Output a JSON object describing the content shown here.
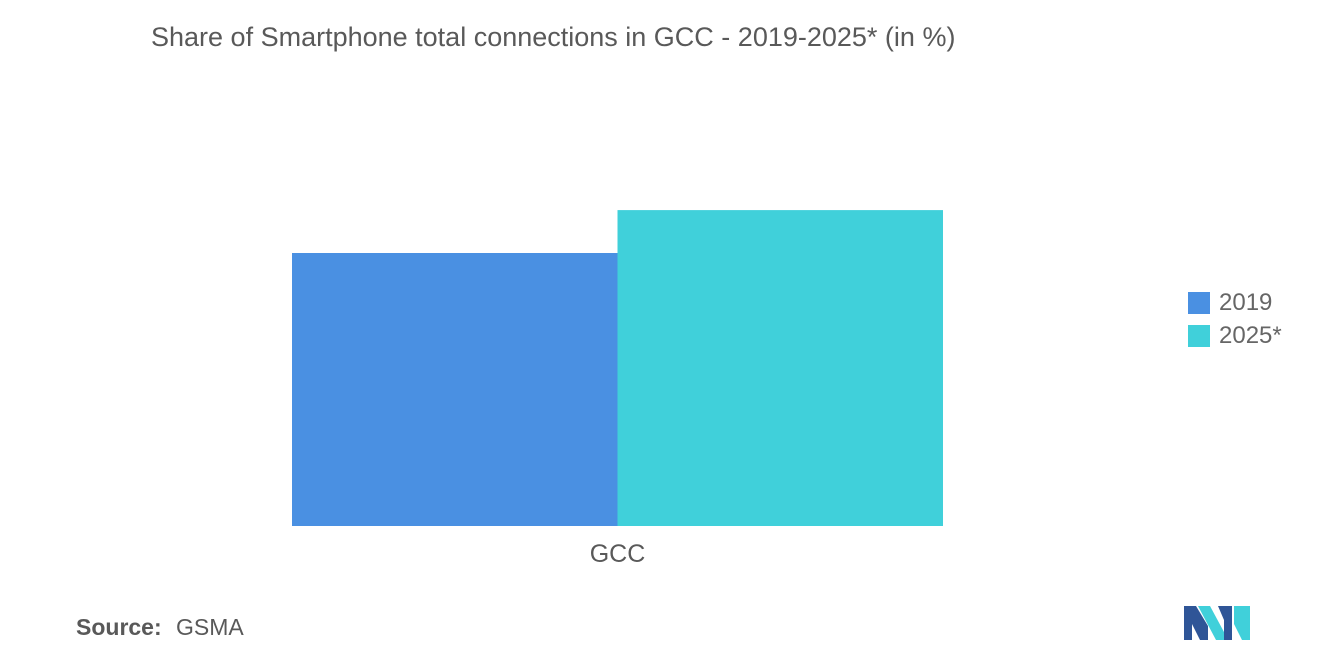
{
  "chart_data": {
    "type": "bar",
    "title": "Share of Smartphone total connections in GCC - 2019-2025* (in %)",
    "categories": [
      "GCC"
    ],
    "series": [
      {
        "name": "2019",
        "values": [
          70
        ],
        "color": "#4a90e2"
      },
      {
        "name": "2025*",
        "values": [
          81
        ],
        "color": "#40d0da"
      }
    ],
    "ylim": [
      0,
      100
    ],
    "grid": false,
    "legend": "right"
  },
  "source": {
    "label": "Source:",
    "value": "GSMA"
  },
  "logo": {
    "icon": "mordor-intelligence-logo-icon",
    "colors": [
      "#2f5597",
      "#40d0da"
    ]
  }
}
